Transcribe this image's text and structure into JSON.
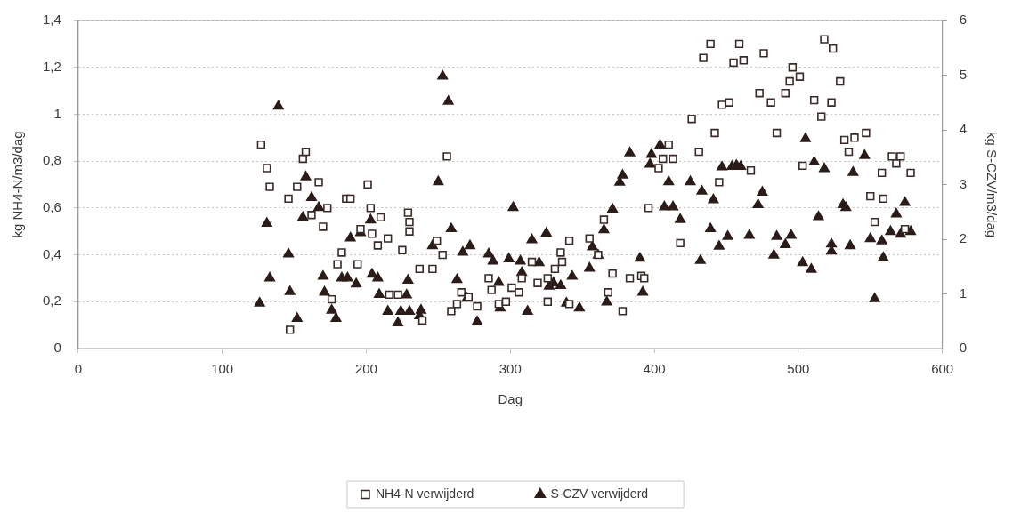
{
  "chart_data": {
    "type": "scatter",
    "xlabel": "Dag",
    "ylabel": "kg NH4-N/m3/dag",
    "y2label": "kg S-CZV/m3/dag",
    "xlim": [
      0,
      600
    ],
    "xticks": [
      0,
      100,
      200,
      300,
      400,
      500,
      600
    ],
    "ylim": [
      0,
      1.4
    ],
    "yticks": [
      0,
      {
        "value": 0.2,
        "label": "0,2"
      },
      {
        "value": 0.4,
        "label": "0,4"
      },
      {
        "value": 0.6,
        "label": "0,6"
      },
      {
        "value": 0.8,
        "label": "0,8"
      },
      1,
      {
        "value": 1.2,
        "label": "1,2"
      },
      {
        "value": 1.4,
        "label": "1,4"
      }
    ],
    "y2lim": [
      0,
      6
    ],
    "y2ticks": [
      0,
      1,
      2,
      3,
      4,
      5,
      6
    ],
    "grid": "y",
    "legend": "bottom",
    "series": [
      {
        "name": "NH4-N verwijderd",
        "color": "#3a2a27",
        "marker": "square",
        "x": [
          127,
          131,
          133,
          146,
          152,
          156,
          158,
          167,
          173,
          162,
          170,
          186,
          189,
          183,
          180,
          176,
          147,
          201,
          203,
          210,
          229,
          230,
          230,
          196,
          204,
          215,
          208,
          194,
          225,
          237,
          246,
          249,
          253,
          256,
          216,
          222,
          239,
          259,
          266,
          271,
          277,
          263,
          285,
          287,
          292,
          297,
          301,
          306,
          308,
          315,
          319,
          326,
          326,
          331,
          336,
          335,
          341,
          341,
          355,
          361,
          365,
          371,
          383,
          391,
          393,
          368,
          378,
          396,
          403,
          406,
          413,
          410,
          418,
          426,
          431,
          442,
          445,
          447,
          452,
          434,
          439,
          455,
          459,
          462,
          476,
          467,
          473,
          481,
          485,
          491,
          494,
          496,
          501,
          503,
          518,
          524,
          529,
          511,
          523,
          516,
          532,
          535,
          539,
          547,
          565,
          571,
          568,
          558,
          578,
          550,
          559,
          553,
          574
        ],
        "values": [
          0.87,
          0.77,
          0.69,
          0.64,
          0.69,
          0.81,
          0.84,
          0.71,
          0.6,
          0.57,
          0.52,
          0.64,
          0.64,
          0.41,
          0.36,
          0.21,
          0.08,
          0.7,
          0.6,
          0.56,
          0.58,
          0.54,
          0.5,
          0.51,
          0.49,
          0.47,
          0.44,
          0.36,
          0.42,
          0.34,
          0.34,
          0.46,
          0.4,
          0.82,
          0.23,
          0.23,
          0.12,
          0.16,
          0.24,
          0.22,
          0.18,
          0.19,
          0.3,
          0.25,
          0.19,
          0.2,
          0.26,
          0.24,
          0.3,
          0.37,
          0.28,
          0.2,
          0.3,
          0.34,
          0.37,
          0.41,
          0.46,
          0.19,
          0.47,
          0.4,
          0.55,
          0.32,
          0.3,
          0.31,
          0.3,
          0.24,
          0.16,
          0.6,
          0.77,
          0.81,
          0.81,
          0.87,
          0.45,
          0.98,
          0.84,
          0.92,
          0.71,
          1.04,
          1.05,
          1.24,
          1.3,
          1.22,
          1.3,
          1.23,
          1.26,
          0.76,
          1.09,
          1.05,
          0.92,
          1.09,
          1.14,
          1.2,
          1.16,
          0.78,
          1.32,
          1.28,
          1.14,
          1.06,
          1.05,
          0.99,
          0.89,
          0.84,
          0.9,
          0.92,
          0.82,
          0.82,
          0.79,
          0.75,
          0.75,
          0.65,
          0.64,
          0.54,
          0.51
        ]
      },
      {
        "name": "S-CZV verwijderd",
        "color": "#2b1c19",
        "marker": "triangle",
        "axis": "y2",
        "x": [
          139,
          158,
          162,
          167,
          156,
          131,
          146,
          133,
          170,
          183,
          147,
          171,
          126,
          176,
          179,
          152,
          253,
          257,
          250,
          302,
          259,
          203,
          196,
          189,
          246,
          267,
          272,
          285,
          288,
          299,
          307,
          315,
          325,
          320,
          308,
          343,
          187,
          204,
          208,
          193,
          229,
          263,
          292,
          327,
          335,
          330,
          209,
          228,
          270,
          215,
          224,
          230,
          238,
          237,
          222,
          277,
          293,
          312,
          339,
          348,
          383,
          378,
          376,
          398,
          397,
          404,
          410,
          425,
          433,
          441,
          447,
          454,
          457,
          460,
          475,
          472,
          371,
          407,
          413,
          418,
          365,
          357,
          361,
          355,
          390,
          392,
          367,
          439,
          445,
          451,
          466,
          485,
          491,
          495,
          432,
          483,
          505,
          511,
          518,
          546,
          538,
          531,
          533,
          514,
          574,
          568,
          564,
          571,
          578,
          523,
          523,
          536,
          550,
          558,
          559,
          503,
          509,
          553
        ],
        "values": [
          4.43,
          3.14,
          2.76,
          2.58,
          2.4,
          2.29,
          1.73,
          1.29,
          1.32,
          1.29,
          1.04,
          1.03,
          0.83,
          0.7,
          0.55,
          0.55,
          4.98,
          4.52,
          3.05,
          2.58,
          2.19,
          2.35,
          2.12,
          2.02,
          1.88,
          1.76,
          1.88,
          1.73,
          1.6,
          1.64,
          1.6,
          1.99,
          2.11,
          1.57,
          1.39,
          1.32,
          1.29,
          1.36,
          1.29,
          1.18,
          1.25,
          1.26,
          1.21,
          1.14,
          1.15,
          1.2,
          0.99,
          0.98,
          0.92,
          0.68,
          0.68,
          0.68,
          0.7,
          0.6,
          0.47,
          0.49,
          0.74,
          0.68,
          0.83,
          0.74,
          3.58,
          3.17,
          3.04,
          3.55,
          3.37,
          3.72,
          3.05,
          3.05,
          2.88,
          2.72,
          3.32,
          3.33,
          3.35,
          3.33,
          2.86,
          2.63,
          2.55,
          2.59,
          2.59,
          2.36,
          2.17,
          1.86,
          1.71,
          1.47,
          1.65,
          1.03,
          0.85,
          2.19,
          1.87,
          2.05,
          2.07,
          2.05,
          1.9,
          2.07,
          1.61,
          1.71,
          3.84,
          3.41,
          3.29,
          3.53,
          3.22,
          2.63,
          2.58,
          2.41,
          2.67,
          2.46,
          2.14,
          2.09,
          2.14,
          1.91,
          1.78,
          1.88,
          2.01,
          1.97,
          1.66,
          1.57,
          1.45,
          0.91
        ]
      }
    ]
  }
}
